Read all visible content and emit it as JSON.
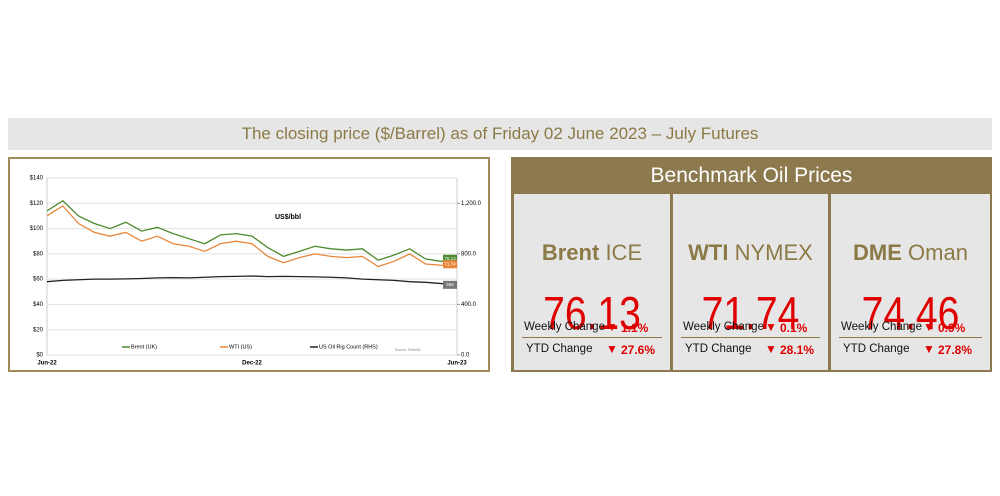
{
  "banner": {
    "title": "The closing price ($/Barrel) as of Friday 02 June 2023 – July Futures"
  },
  "chart_data": {
    "type": "line",
    "title": "US$/bbl",
    "source": "Source: Refinitiv",
    "categories": [
      "Jun-22",
      null,
      null,
      null,
      null,
      null,
      null,
      null,
      null,
      null,
      null,
      null,
      null,
      "Dec-22",
      null,
      null,
      null,
      null,
      null,
      null,
      null,
      null,
      null,
      null,
      null,
      null,
      "Jun-23"
    ],
    "series": [
      {
        "name": "Brent (UK)",
        "color": "#4e8a2e",
        "values": [
          114,
          122,
          110,
          104,
          100,
          105,
          98,
          101,
          96,
          92,
          88,
          95,
          96,
          94,
          85,
          78,
          82,
          86,
          84,
          83,
          84,
          75,
          79,
          84,
          76,
          74,
          76.13
        ]
      },
      {
        "name": "WTI (US)",
        "color": "#e8873a",
        "values": [
          110,
          118,
          104,
          97,
          94,
          97,
          90,
          94,
          88,
          86,
          82,
          88,
          90,
          88,
          78,
          73,
          77,
          80,
          78,
          77,
          78,
          70,
          74,
          80,
          72,
          71,
          71.74
        ]
      },
      {
        "name": "US Oil Rig Count (RHS)",
        "color": "#222222",
        "axis": "y2",
        "values": [
          580,
          590,
          595,
          600,
          600,
          602,
          605,
          610,
          612,
          610,
          615,
          620,
          622,
          625,
          620,
          622,
          620,
          618,
          615,
          610,
          600,
          595,
          590,
          580,
          575,
          565,
          555
        ]
      }
    ],
    "ylim": [
      0,
      140
    ],
    "yticks": [
      {
        "value": 0,
        "label": "$0"
      },
      {
        "value": 20,
        "label": "$20"
      },
      {
        "value": 40,
        "label": "$40"
      },
      {
        "value": 60,
        "label": "$60"
      },
      {
        "value": 80,
        "label": "$80"
      },
      {
        "value": 100,
        "label": "$100"
      },
      {
        "value": 120,
        "label": "$120"
      },
      {
        "value": 140,
        "label": "$140"
      }
    ],
    "y2lim": [
      0,
      1400
    ],
    "y2ticks": [
      {
        "value": 0,
        "label": "0.0"
      },
      {
        "value": 400,
        "label": "400.0"
      },
      {
        "value": 800,
        "label": "800.0"
      },
      {
        "value": 1200,
        "label": "1,200.0"
      }
    ],
    "grid": true
  },
  "benchmark": {
    "title": "Benchmark Oil Prices",
    "items": [
      {
        "name": "Brent",
        "exchange": "ICE",
        "price": "76.13",
        "weekly_label": "Weekly Change",
        "weekly": "1.1%",
        "ytd_label": "YTD Change",
        "ytd": "27.6%"
      },
      {
        "name": "WTI",
        "exchange": "NYMEX",
        "price": "71.74",
        "weekly_label": "Weekly Change",
        "weekly": "0.1%",
        "ytd_label": "YTD Change",
        "ytd": "28.1%"
      },
      {
        "name": "DME",
        "exchange": "Oman",
        "price": "74.46",
        "weekly_label": "Weekly Change",
        "weekly": "0.9%",
        "ytd_label": "YTD Change",
        "ytd": "27.8%"
      }
    ]
  }
}
